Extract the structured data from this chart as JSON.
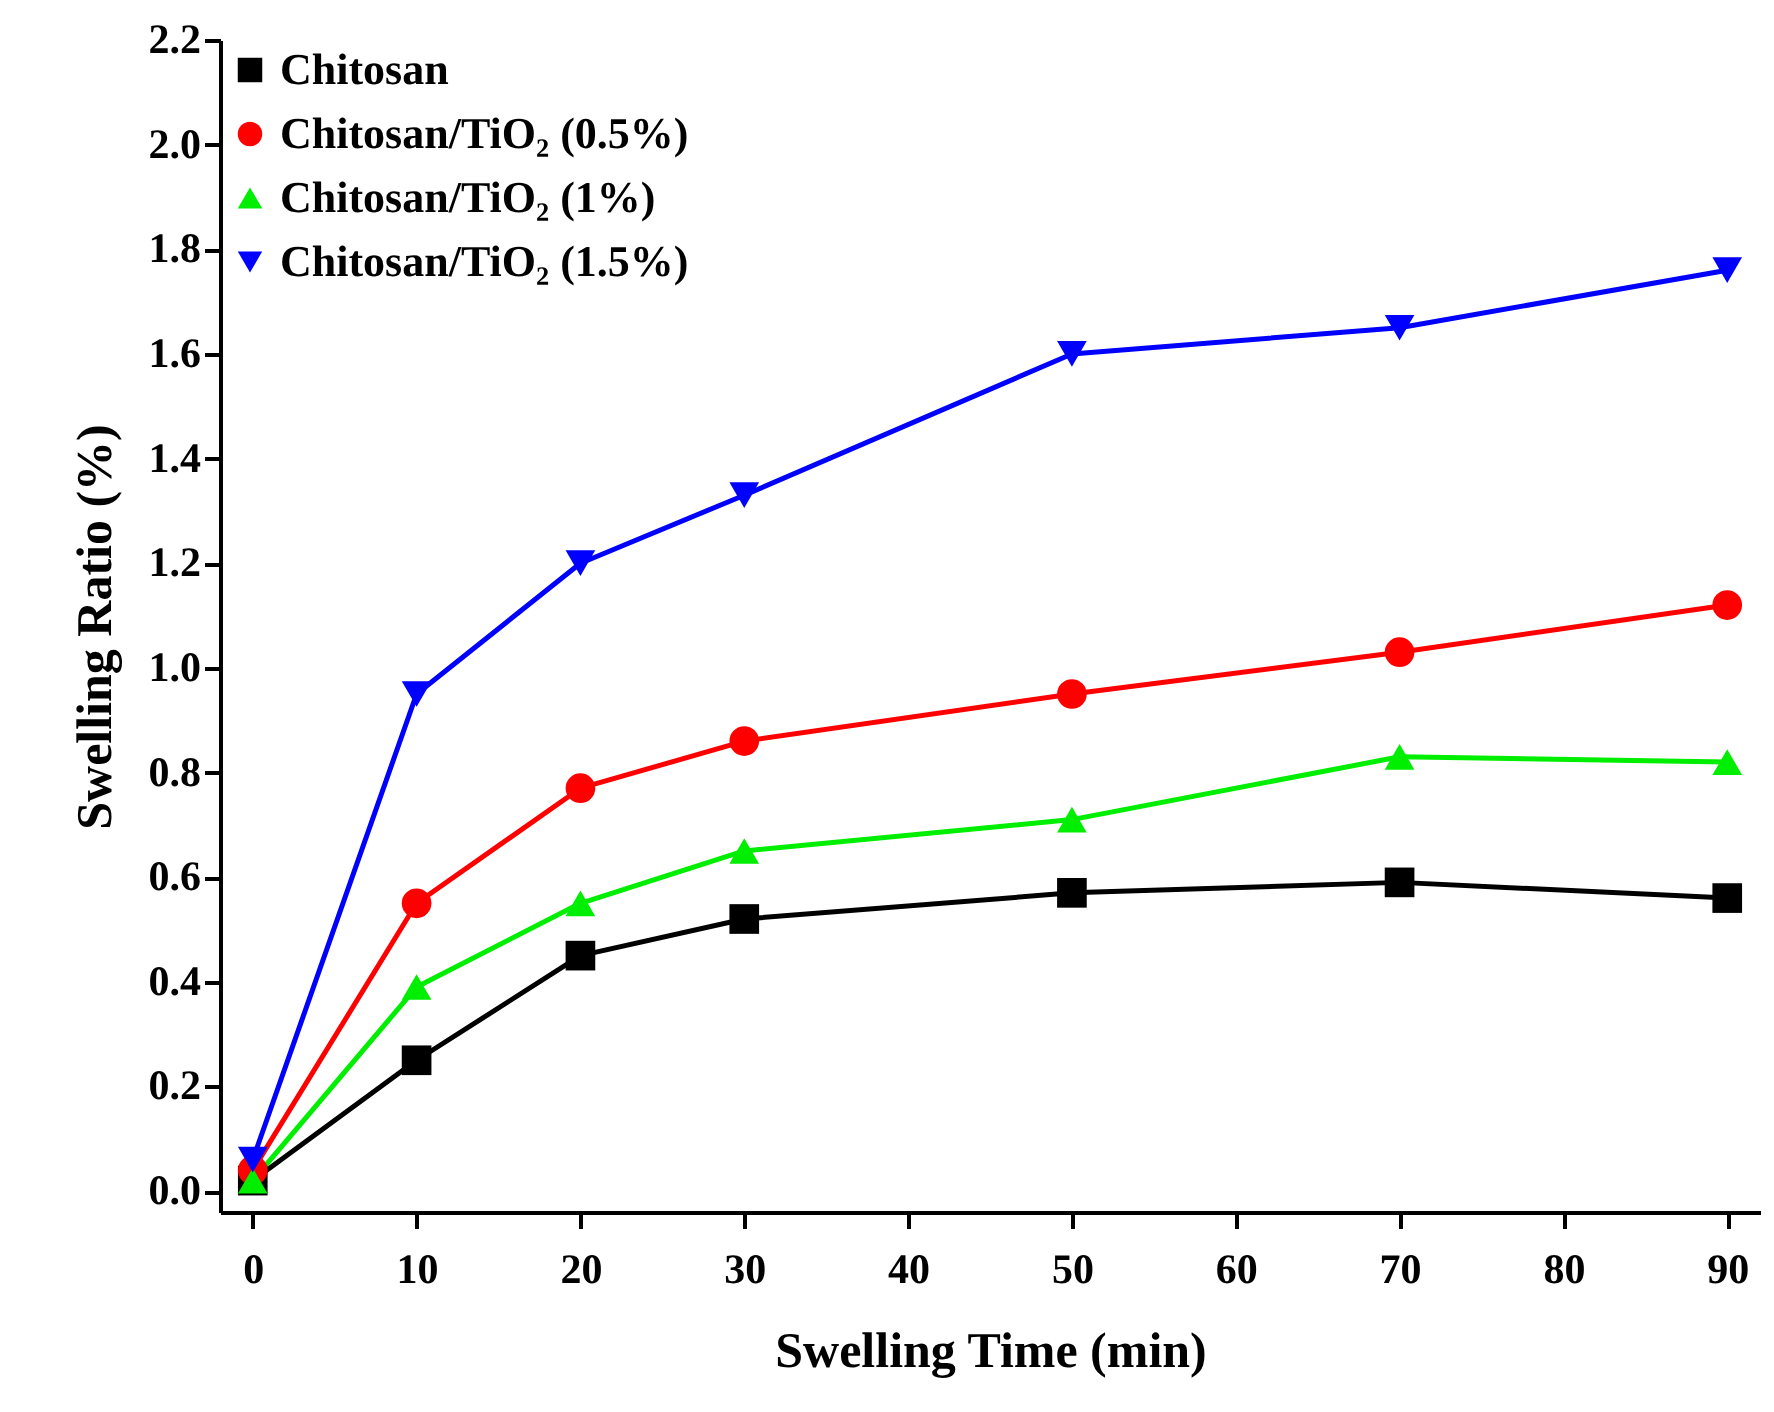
{
  "chart_data": {
    "type": "line",
    "xlabel": "Swelling Time (min)",
    "ylabel": "Swelling Ratio (%)",
    "x": [
      0,
      10,
      20,
      30,
      50,
      70,
      90
    ],
    "series": [
      {
        "name": "Chitosan",
        "color": "#000000",
        "marker": "square",
        "values": [
          0.02,
          0.25,
          0.45,
          0.52,
          0.57,
          0.59,
          0.56
        ]
      },
      {
        "name": "Chitosan/TiO₂ (0.5%)",
        "color": "#ff0000",
        "marker": "circle",
        "values": [
          0.04,
          0.55,
          0.77,
          0.86,
          0.95,
          1.03,
          1.12
        ]
      },
      {
        "name": "Chitosan/TiO₂ (1%)",
        "color": "#00ee00",
        "marker": "triangle",
        "values": [
          0.02,
          0.39,
          0.55,
          0.65,
          0.71,
          0.83,
          0.82
        ]
      },
      {
        "name": "Chitosan/TiO₂ (1.5%)",
        "color": "#0000ff",
        "marker": "triangle-down",
        "values": [
          0.06,
          0.95,
          1.2,
          1.33,
          1.6,
          1.65,
          1.76
        ]
      }
    ],
    "xlim": [
      -2,
      92
    ],
    "xticks": [
      0,
      10,
      20,
      30,
      40,
      50,
      60,
      70,
      80,
      90
    ],
    "ylim": [
      -0.04,
      2.2
    ],
    "yticks": [
      {
        "value": 0,
        "label": "0.0"
      },
      0.2,
      0.4,
      0.6,
      0.8,
      {
        "value": 1,
        "label": "1.0"
      },
      1.2,
      1.4,
      1.6,
      1.8,
      {
        "value": 2,
        "label": "2.0"
      },
      2.2
    ],
    "grid": false,
    "legend": "top left",
    "line_style": "solid"
  }
}
